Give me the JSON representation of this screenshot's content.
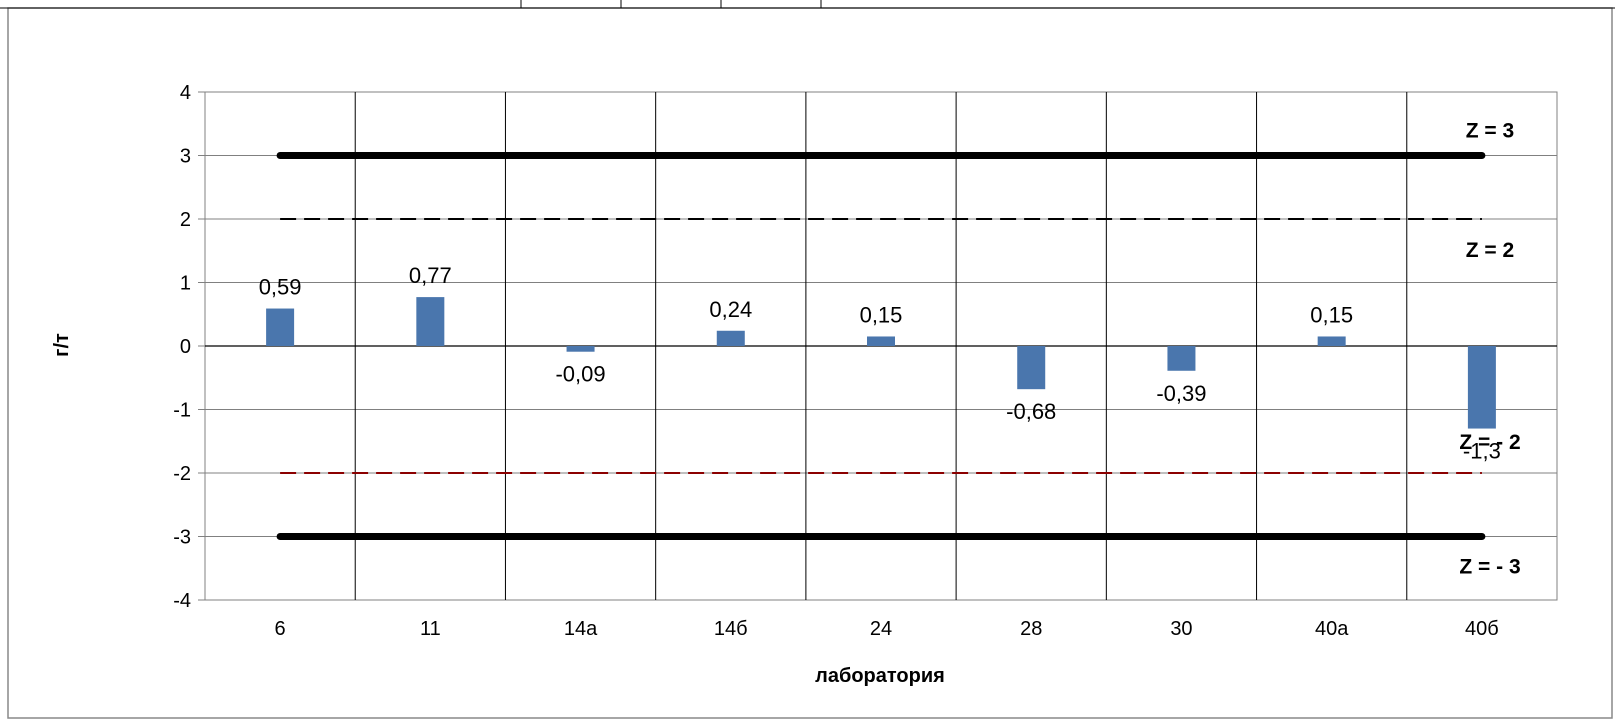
{
  "chart_data": {
    "type": "bar",
    "title": "",
    "xlabel": "лаборатория",
    "ylabel": "г/т",
    "ylim": [
      -4,
      4
    ],
    "yticks": [
      "4",
      "3",
      "2",
      "1",
      "0",
      "-1",
      "-2",
      "-3",
      "-4"
    ],
    "yticks_values": [
      4,
      3,
      2,
      1,
      0,
      -1,
      -2,
      -3,
      -4
    ],
    "categories": [
      "6",
      "11",
      "14a",
      "14б",
      "24",
      "28",
      "30",
      "40a",
      "40б"
    ],
    "series": [
      {
        "values": [
          0.59,
          0.77,
          -0.09,
          0.24,
          0.15,
          -0.68,
          -0.39,
          0.15,
          -1.3
        ],
        "labels": [
          "0,59",
          "0,77",
          "-0,09",
          "0,24",
          "0,15",
          "-0,68",
          "-0,39",
          "0,15",
          "-1,3"
        ]
      }
    ],
    "reference_lines": [
      {
        "value": 3,
        "label": "Z = 3",
        "style": "thick",
        "color": "#000000"
      },
      {
        "value": 2,
        "label": "Z = 2",
        "style": "dashed",
        "color": "#000000"
      },
      {
        "value": -2,
        "label": "Z = - 2",
        "style": "dashed",
        "color": "#8b0000"
      },
      {
        "value": -3,
        "label": "Z = - 3",
        "style": "thick",
        "color": "#000000"
      }
    ],
    "bar_color": "#4a76ad",
    "grid": true,
    "legend": "none"
  }
}
